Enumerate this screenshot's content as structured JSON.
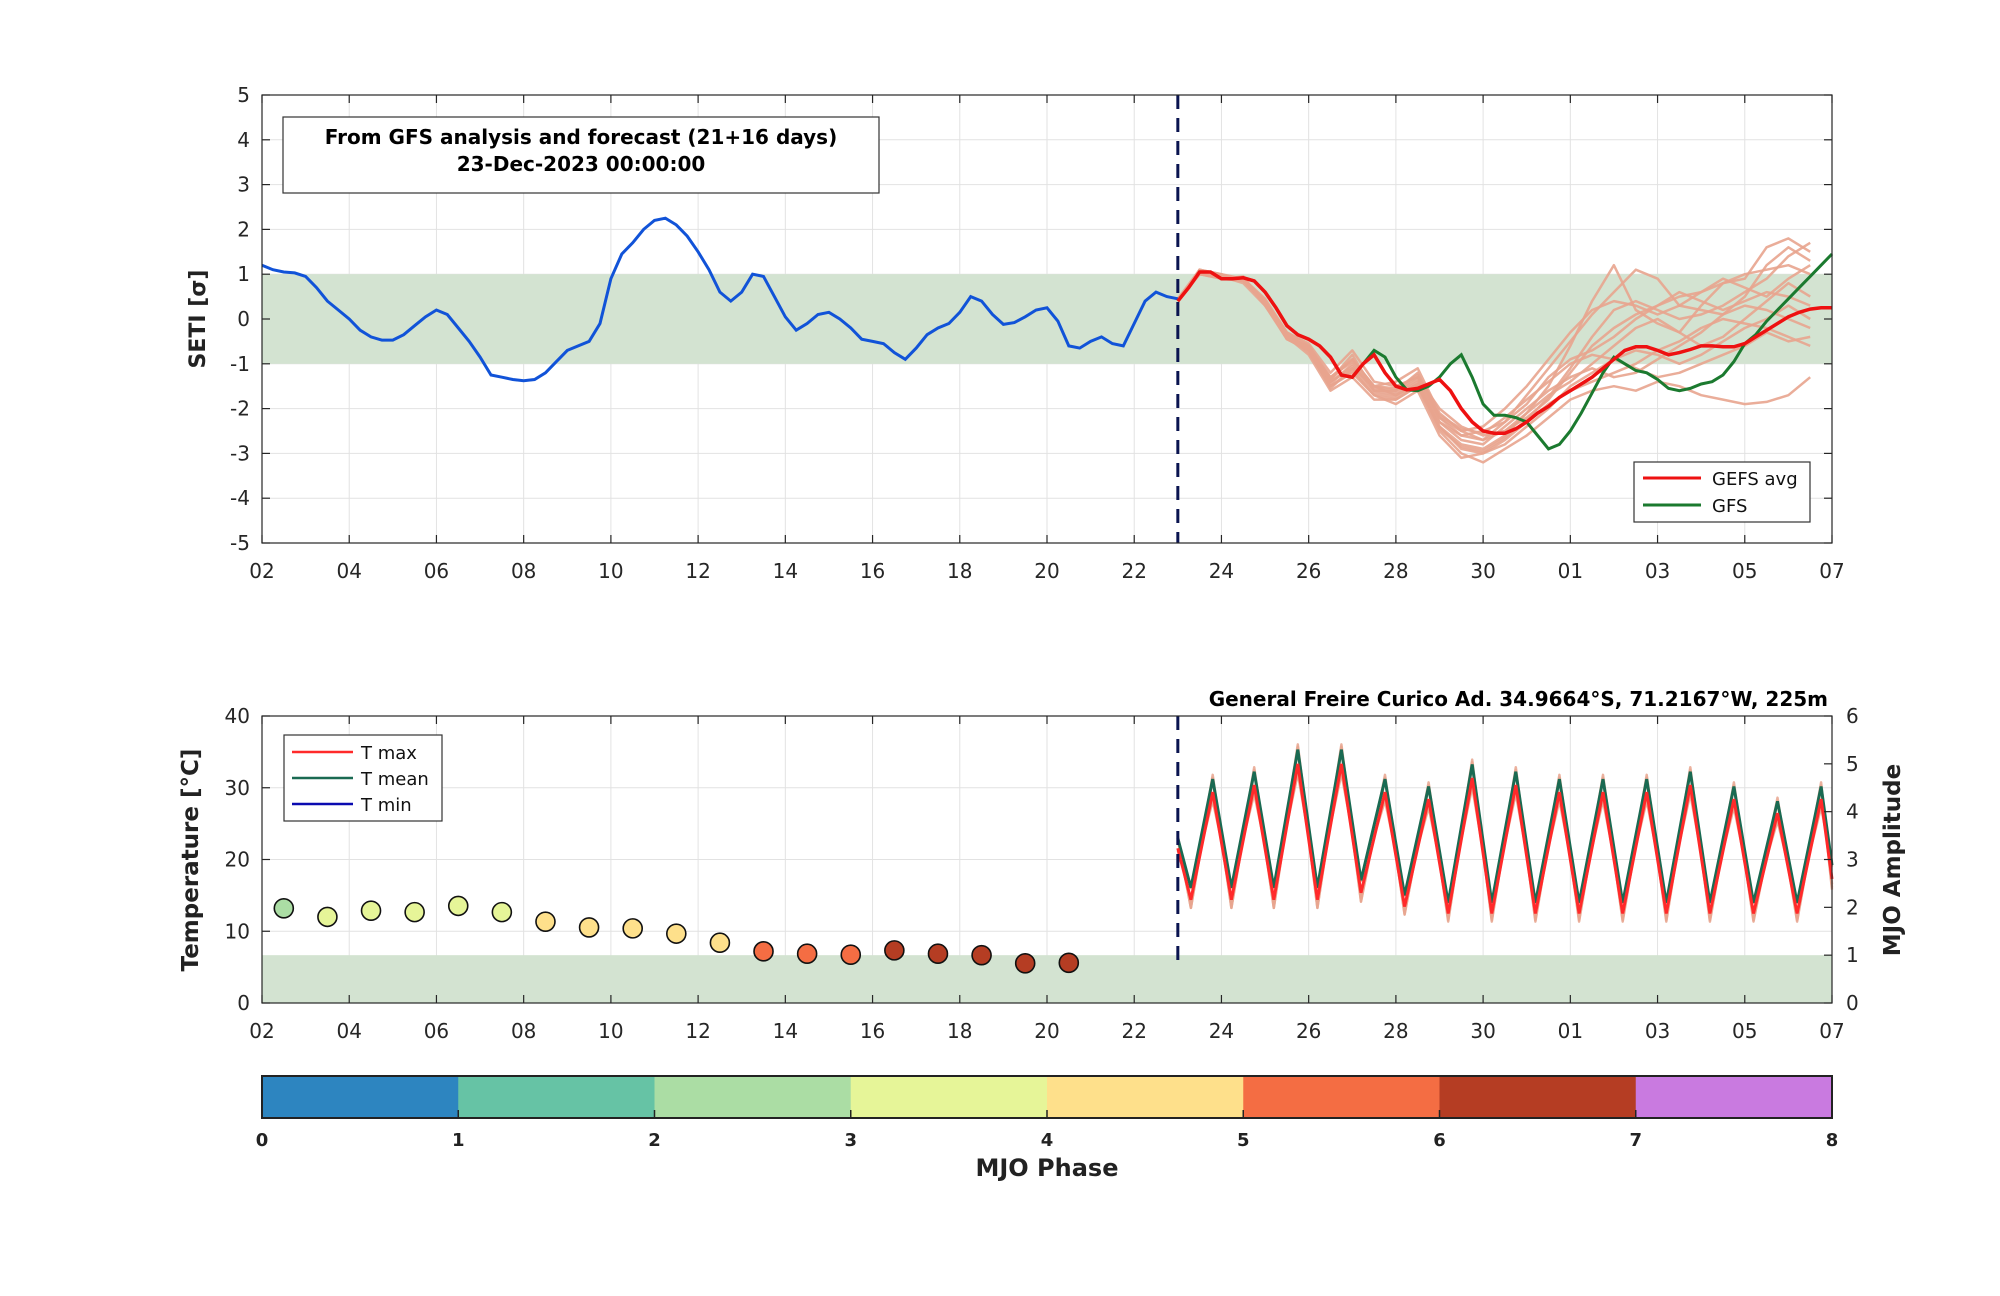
{
  "colors": {
    "band": "#d3e3d1",
    "analysis": "#1153d8",
    "ensemble": "#e8a48e",
    "gefs_avg": "#ee1111",
    "gfs": "#1b7a2f",
    "divider": "#0a1450",
    "grid": "#e2e2e2",
    "tmax": "#ff2a2a",
    "tmean": "#1a6a52",
    "tmin": "#0a0ab0"
  },
  "chart_data": [
    {
      "id": "seti",
      "type": "line",
      "ylabel": "SETI [σ]",
      "ylim": [
        -5,
        5
      ],
      "yticks": [
        "5",
        "4",
        "3",
        "2",
        "1",
        "0",
        "-1",
        "-2",
        "-3",
        "-4",
        "-5"
      ],
      "xlim_days": [
        2,
        38
      ],
      "xticks": [
        "02",
        "04",
        "06",
        "08",
        "10",
        "12",
        "14",
        "16",
        "18",
        "20",
        "22",
        "24",
        "26",
        "28",
        "30",
        "01",
        "03",
        "05",
        "07"
      ],
      "normal_band": [
        -1,
        1
      ],
      "forecast_start_day": 23,
      "annotation": [
        "From GFS analysis and forecast (21+16 days)",
        "23-Dec-2023 00:00:00"
      ],
      "legend": {
        "placement": "bottom-right",
        "entries": [
          "GEFS avg",
          "GFS"
        ]
      },
      "analysis_series": {
        "x": [
          2,
          2.25,
          2.5,
          2.75,
          3,
          3.25,
          3.5,
          3.75,
          4,
          4.25,
          4.5,
          4.75,
          5,
          5.25,
          5.5,
          5.75,
          6,
          6.25,
          6.5,
          6.75,
          7,
          7.25,
          7.5,
          7.75,
          8,
          8.25,
          8.5,
          8.75,
          9,
          9.25,
          9.5,
          9.75,
          10,
          10.25,
          10.5,
          10.75,
          11,
          11.25,
          11.5,
          11.75,
          12,
          12.25,
          12.5,
          12.75,
          13,
          13.25,
          13.5,
          13.75,
          14,
          14.25,
          14.5,
          14.75,
          15,
          15.25,
          15.5,
          15.75,
          16,
          16.25,
          16.5,
          16.75,
          17,
          17.25,
          17.5,
          17.75,
          18,
          18.25,
          18.5,
          18.75,
          19,
          19.25,
          19.5,
          19.75,
          20,
          20.25,
          20.5,
          20.75,
          21,
          21.25,
          21.5,
          21.75,
          22,
          22.25,
          22.5,
          22.75,
          23
        ],
        "y": [
          1.2,
          1.1,
          1.05,
          1.03,
          0.95,
          0.7,
          0.4,
          0.2,
          0,
          -0.25,
          -0.4,
          -0.47,
          -0.47,
          -0.35,
          -0.15,
          0.05,
          0.2,
          0.1,
          -0.2,
          -0.5,
          -0.85,
          -1.25,
          -1.3,
          -1.35,
          -1.38,
          -1.35,
          -1.2,
          -0.95,
          -0.7,
          -0.6,
          -0.5,
          -0.1,
          0.9,
          1.45,
          1.7,
          2,
          2.2,
          2.25,
          2.1,
          1.85,
          1.5,
          1.1,
          0.6,
          0.4,
          0.6,
          1,
          0.95,
          0.5,
          0.05,
          -0.25,
          -0.1,
          0.1,
          0.15,
          0,
          -0.2,
          -0.45,
          -0.5,
          -0.55,
          -0.75,
          -0.9,
          -0.65,
          -0.35,
          -0.2,
          -0.1,
          0.15,
          0.5,
          0.4,
          0.1,
          -0.12,
          -0.08,
          0.05,
          0.2,
          0.25,
          -0.05,
          -0.6,
          -0.65,
          -0.5,
          -0.4,
          -0.55,
          -0.6,
          -0.1,
          0.4,
          0.6,
          0.5,
          0.45
        ]
      },
      "gefs_avg": {
        "x": [
          23,
          23.25,
          23.5,
          23.75,
          24,
          24.25,
          24.5,
          24.75,
          25,
          25.25,
          25.5,
          25.75,
          26,
          26.25,
          26.5,
          26.75,
          27,
          27.25,
          27.5,
          27.75,
          28,
          28.25,
          28.5,
          28.75,
          29,
          29.25,
          29.5,
          29.75,
          30,
          30.25,
          30.5,
          30.75,
          31,
          31.25,
          31.5,
          31.75,
          32,
          32.25,
          32.5,
          32.75,
          33,
          33.25,
          33.5,
          33.75,
          34,
          34.25,
          34.5,
          34.75,
          35,
          35.25,
          35.5,
          35.75,
          36,
          36.25,
          36.5,
          36.75,
          37,
          37.25,
          37.5,
          37.75,
          38
        ],
        "y": [
          0.4,
          0.7,
          1.05,
          1.05,
          0.9,
          0.9,
          0.92,
          0.85,
          0.6,
          0.25,
          -0.15,
          -0.35,
          -0.45,
          -0.6,
          -0.85,
          -1.25,
          -1.3,
          -1,
          -0.8,
          -1.2,
          -1.5,
          -1.58,
          -1.55,
          -1.45,
          -1.35,
          -1.6,
          -2,
          -2.3,
          -2.5,
          -2.55,
          -2.55,
          -2.45,
          -2.3,
          -2.1,
          -1.95,
          -1.75,
          -1.6,
          -1.45,
          -1.3,
          -1.1,
          -0.9,
          -0.7,
          -0.62,
          -0.62,
          -0.7,
          -0.8,
          -0.75,
          -0.68,
          -0.6,
          -0.6,
          -0.62,
          -0.62,
          -0.55,
          -0.4,
          -0.25,
          -0.1,
          0.05,
          0.15,
          0.22,
          0.25,
          0.25
        ]
      },
      "gfs": {
        "x": [
          23,
          23.25,
          23.5,
          23.75,
          24,
          24.25,
          24.5,
          24.75,
          25,
          25.25,
          25.5,
          25.75,
          26,
          26.25,
          26.5,
          26.75,
          27,
          27.25,
          27.5,
          27.75,
          28,
          28.25,
          28.5,
          28.75,
          29,
          29.25,
          29.5,
          29.75,
          30,
          30.25,
          30.5,
          30.75,
          31,
          31.25,
          31.5,
          31.75,
          32,
          32.25,
          32.5,
          32.75,
          33,
          33.25,
          33.5,
          33.75,
          34,
          34.25,
          34.5,
          34.75,
          35,
          35.25,
          35.5,
          35.75,
          36,
          36.25,
          36.5,
          36.75,
          37,
          37.25,
          37.5,
          37.75,
          38
        ],
        "y": [
          0.4,
          0.7,
          1.05,
          1.05,
          0.9,
          0.9,
          0.92,
          0.85,
          0.6,
          0.25,
          -0.15,
          -0.35,
          -0.45,
          -0.6,
          -0.85,
          -1.25,
          -1.3,
          -1,
          -0.7,
          -0.85,
          -1.3,
          -1.58,
          -1.6,
          -1.5,
          -1.3,
          -1,
          -0.8,
          -1.3,
          -1.9,
          -2.15,
          -2.15,
          -2.2,
          -2.3,
          -2.6,
          -2.9,
          -2.8,
          -2.5,
          -2.1,
          -1.65,
          -1.2,
          -0.85,
          -1,
          -1.15,
          -1.2,
          -1.35,
          -1.55,
          -1.6,
          -1.55,
          -1.45,
          -1.4,
          -1.25,
          -0.95,
          -0.55,
          -0.35,
          -0.05,
          0.2,
          0.45,
          0.7,
          0.95,
          1.2,
          1.45
        ]
      },
      "ensemble_members": [
        [
          0.4,
          1.1,
          0.95,
          0.9,
          0.4,
          -0.4,
          -0.65,
          -1.4,
          -1.1,
          -1.5,
          -1.7,
          -1.45,
          -2.4,
          -2.8,
          -2.9,
          -2.6,
          -2.1,
          -1.5,
          -0.6,
          0.4,
          1.2,
          0.2,
          -0.1,
          -0.3,
          0.3,
          0.8,
          0.9,
          1.6,
          1.8,
          1.5
        ],
        [
          0.4,
          1,
          0.9,
          0.85,
          0.35,
          -0.35,
          -0.7,
          -1.35,
          -0.8,
          -1.6,
          -1.6,
          -1.2,
          -2.2,
          -2.6,
          -2.5,
          -2.3,
          -1.7,
          -1.1,
          -0.5,
          0.1,
          0.6,
          1.1,
          0.9,
          0.3,
          0.2,
          0.1,
          0.5,
          1.2,
          1.6,
          1.3
        ],
        [
          0.45,
          1.05,
          0.9,
          0.95,
          0.3,
          -0.45,
          -0.6,
          -1.5,
          -1.2,
          -1.7,
          -1.9,
          -1.6,
          -2.6,
          -3.1,
          -3,
          -2.7,
          -2.3,
          -1.9,
          -1.6,
          -1.4,
          -1.2,
          -1,
          -0.7,
          -0.5,
          -0.2,
          0,
          -0.1,
          -0.2,
          -0.4,
          -0.6
        ],
        [
          0.4,
          1.1,
          1,
          0.9,
          0.45,
          -0.3,
          -0.55,
          -1.2,
          -0.7,
          -1.4,
          -1.5,
          -1.3,
          -2,
          -2.4,
          -2.6,
          -2.5,
          -2.2,
          -1.8,
          -1.2,
          -0.6,
          -0.2,
          0.1,
          0.3,
          0.5,
          0.6,
          0.8,
          1,
          1.1,
          1.2,
          1
        ],
        [
          0.4,
          1,
          0.95,
          0.8,
          0.3,
          -0.4,
          -0.8,
          -1.6,
          -1.3,
          -1.8,
          -1.8,
          -1.5,
          -2.5,
          -3,
          -3.2,
          -2.9,
          -2.6,
          -2.2,
          -1.8,
          -1.6,
          -1.5,
          -1.6,
          -1.4,
          -1.5,
          -1.7,
          -1.8,
          -1.9,
          -1.85,
          -1.7,
          -1.3
        ],
        [
          0.45,
          1.1,
          0.9,
          0.9,
          0.4,
          -0.35,
          -0.65,
          -1.3,
          -0.9,
          -1.5,
          -1.4,
          -1.1,
          -2.1,
          -2.5,
          -2.7,
          -2.3,
          -1.9,
          -1.3,
          -0.9,
          -0.7,
          -0.4,
          0,
          0.3,
          0.6,
          0.4,
          0.2,
          0.4,
          0.6,
          0.5,
          0.3
        ],
        [
          0.4,
          1.05,
          0.95,
          0.85,
          0.35,
          -0.45,
          -0.7,
          -1.45,
          -1,
          -1.6,
          -1.7,
          -1.4,
          -2.3,
          -2.7,
          -2.8,
          -2.4,
          -2,
          -1.6,
          -1.3,
          -1.1,
          -1.3,
          -1.2,
          -0.9,
          -0.6,
          -0.3,
          0.1,
          0.3,
          0.2,
          0,
          -0.2
        ],
        [
          0.4,
          1.1,
          0.9,
          0.9,
          0.3,
          -0.4,
          -0.6,
          -1.35,
          -0.9,
          -1.5,
          -1.6,
          -1.3,
          -2.2,
          -2.5,
          -2.4,
          -2,
          -1.5,
          -0.9,
          -0.3,
          0.2,
          0.4,
          0.3,
          0.1,
          0.3,
          0.6,
          0.9,
          0.7,
          0.5,
          0.9,
          1.2
        ],
        [
          0.45,
          1,
          0.95,
          0.85,
          0.4,
          -0.35,
          -0.75,
          -1.5,
          -1.15,
          -1.7,
          -1.8,
          -1.5,
          -2.4,
          -2.9,
          -3,
          -2.8,
          -2.4,
          -2,
          -1.5,
          -1.2,
          -0.9,
          -0.7,
          -0.8,
          -1,
          -0.8,
          -0.5,
          -0.2,
          0,
          0.3,
          0
        ],
        [
          0.4,
          1.05,
          0.9,
          0.9,
          0.35,
          -0.4,
          -0.65,
          -1.4,
          -1.05,
          -1.55,
          -1.65,
          -1.35,
          -2.3,
          -2.6,
          -2.7,
          -2.5,
          -2.1,
          -1.7,
          -1.4,
          -1,
          -0.6,
          -0.2,
          0,
          -0.3,
          -0.6,
          -0.4,
          0,
          0.4,
          0.8,
          0.5
        ],
        [
          0.4,
          1.1,
          1,
          0.85,
          0.4,
          -0.3,
          -0.6,
          -1.3,
          -0.95,
          -1.5,
          -1.55,
          -1.25,
          -2.15,
          -2.45,
          -2.55,
          -2.2,
          -1.8,
          -1.4,
          -1,
          -0.8,
          -0.9,
          -1.1,
          -1.3,
          -1.2,
          -1,
          -0.8,
          -0.6,
          -0.3,
          -0.5,
          -0.4
        ],
        [
          0.45,
          1,
          0.9,
          0.9,
          0.35,
          -0.45,
          -0.7,
          -1.55,
          -1.1,
          -1.65,
          -1.75,
          -1.45,
          -2.45,
          -2.85,
          -2.95,
          -2.65,
          -2.25,
          -1.75,
          -1.1,
          -0.4,
          0.2,
          0.4,
          0.2,
          0,
          0.1,
          0.3,
          0.6,
          0.9,
          1.4,
          1.7
        ]
      ]
    },
    {
      "id": "temperature",
      "type": "line",
      "ylabel": "Temperature [°C]",
      "ylim": [
        0,
        40
      ],
      "yticks": [
        "40",
        "30",
        "20",
        "10",
        "0"
      ],
      "y2label": "MJO Amplitude",
      "y2lim": [
        0,
        6
      ],
      "y2ticks": [
        "6",
        "5",
        "4",
        "3",
        "2",
        "1",
        "0"
      ],
      "xlim_days": [
        2,
        38
      ],
      "xticks": [
        "02",
        "04",
        "06",
        "08",
        "10",
        "12",
        "14",
        "16",
        "18",
        "20",
        "22",
        "24",
        "26",
        "28",
        "30",
        "01",
        "03",
        "05",
        "07"
      ],
      "title": "General Freire Curico Ad. 34.9664°S, 71.2167°W, 225m",
      "forecast_start_day": 23,
      "amplitude_band": [
        0,
        1
      ],
      "legend": {
        "placement": "top-left",
        "entries": [
          "T max",
          "T mean",
          "T min"
        ]
      },
      "mjo_points": {
        "day": [
          2.5,
          3.5,
          4.5,
          5.5,
          6.5,
          7.5,
          8.5,
          9.5,
          10.5,
          11.5,
          12.5,
          13.5,
          14.5,
          15.5,
          16.5,
          17.5,
          18.5,
          19.5,
          20.5
        ],
        "amplitude": [
          1.98,
          1.8,
          1.93,
          1.9,
          2.03,
          1.9,
          1.7,
          1.58,
          1.56,
          1.45,
          1.26,
          1.08,
          1.03,
          1.01,
          1.1,
          1.03,
          1,
          0.83,
          0.84
        ],
        "phase": [
          2.5,
          3.2,
          3.3,
          3.3,
          3.2,
          3.4,
          4.3,
          4.3,
          4.3,
          4.4,
          4.6,
          5.6,
          5.6,
          5.6,
          6.6,
          6.6,
          6.6,
          6.6,
          6.6
        ]
      },
      "forecast_temperature": {
        "peak_days": [
          23.8,
          24.75,
          25.75,
          26.75,
          27.75,
          28.75,
          29.75,
          30.75,
          31.75,
          32.75,
          33.75,
          34.75,
          35.75,
          36.75,
          37.75
        ],
        "tmax_peaks": [
          30,
          31,
          34,
          34,
          30,
          29,
          32,
          31,
          30,
          30,
          30,
          31,
          29,
          27,
          29
        ],
        "tmin_troughs": [
          15,
          15,
          15,
          16,
          14,
          13,
          13,
          13,
          13,
          13,
          13,
          13,
          13,
          13,
          15
        ]
      }
    },
    {
      "id": "mjo_phase_colorbar",
      "type": "colorbar",
      "xlabel": "MJO Phase",
      "ticks": [
        "0",
        "1",
        "2",
        "3",
        "4",
        "5",
        "6",
        "7",
        "8"
      ],
      "colors": [
        "#2d85c0",
        "#66c3a5",
        "#abdda4",
        "#e6f598",
        "#fee08b",
        "#f46d43",
        "#b53d23",
        "#c97ae0"
      ]
    }
  ]
}
